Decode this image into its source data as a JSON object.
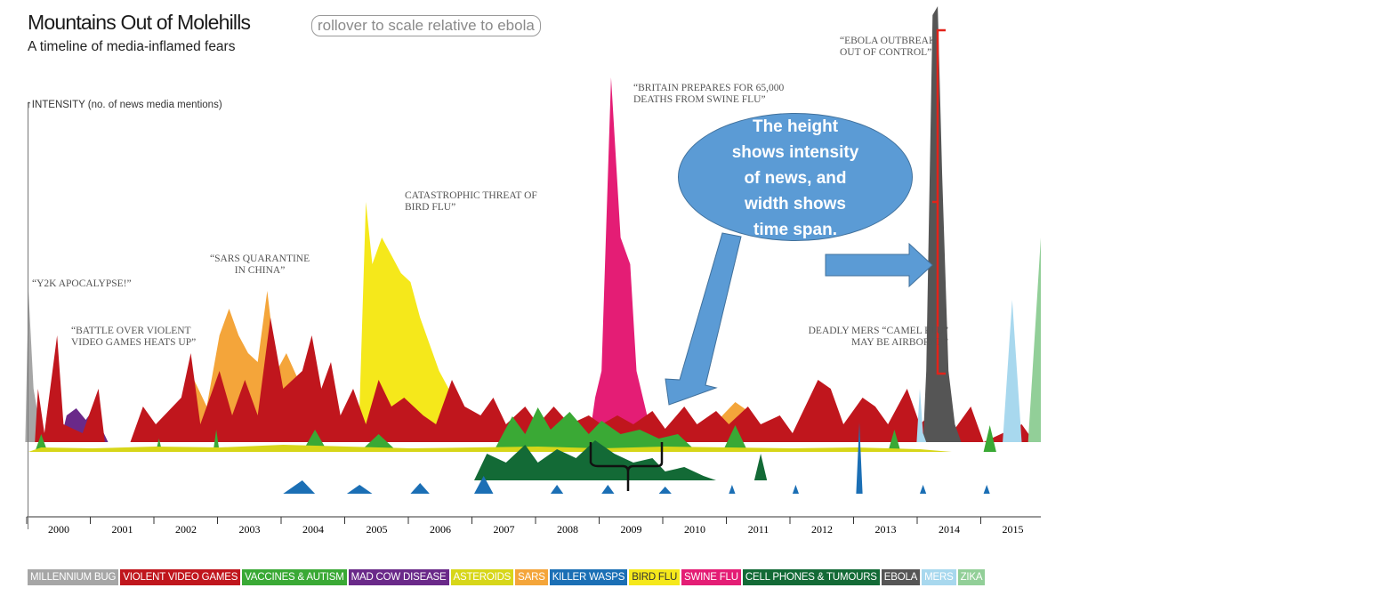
{
  "header": {
    "title": "Mountains Out of Molehills",
    "subtitle": "A timeline of media-inflamed fears",
    "rollover": "rollover to scale relative to ebola"
  },
  "callout": {
    "lines": [
      "The height",
      "shows intensity",
      "of news, and",
      "width shows",
      "time span."
    ]
  },
  "annotations": {
    "y2k": "“Y2K APOCALYPSE!”",
    "games": "“BATTLE OVER VIOLENT\nVIDEO GAMES HEATS UP”",
    "sars": "“SARS QUARANTINE\nIN CHINA”",
    "birdflu": "CATASTROPHIC THREAT OF\nBIRD FLU”",
    "swineflu": "“BRITAIN PREPARES FOR 65,000\nDEATHS FROM SWINE FLU”",
    "mers": "DEADLY MERS “CAMEL FLU”\nMAY BE AIRBORNE”",
    "ebola": "“EBOLA OUTBREAK\nOUT OF CONTROL”"
  },
  "colors": {
    "millennium_bug": "#a6a6a6",
    "violent_video_games": "#c0161d",
    "vaccines_autism": "#3aa935",
    "mad_cow": "#6a2989",
    "asteroids": "#d7d619",
    "sars": "#f4a53a",
    "killer_wasps": "#1b6fb5",
    "bird_flu": "#f5e81b",
    "swine_flu": "#e41d75",
    "cell_phones": "#136a36",
    "ebola": "#555555",
    "mers": "#a8d8ee",
    "zika": "#92cf98",
    "callout_fill": "#5b9bd5",
    "bracket_red": "#e2231a"
  },
  "chart_data": {
    "type": "area",
    "title": "Mountains Out of Molehills",
    "subtitle": "A timeline of media-inflamed fears",
    "ylabel": "INTENSITY (no. of news media mentions)",
    "xlabel": "",
    "x_ticks": [
      "2000",
      "2001",
      "2002",
      "2003",
      "2004",
      "2005",
      "2006",
      "2007",
      "2008",
      "2009",
      "2010",
      "2011",
      "2012",
      "2013",
      "2014",
      "2015"
    ],
    "xlim": [
      2000,
      2015.9
    ],
    "legend": [
      {
        "name": "MILLENNIUM BUG",
        "color": "#a6a6a6"
      },
      {
        "name": "VIOLENT VIDEO GAMES",
        "color": "#c0161d"
      },
      {
        "name": "VACCINES & AUTISM",
        "color": "#3aa935"
      },
      {
        "name": "MAD COW DISEASE",
        "color": "#6a2989"
      },
      {
        "name": "ASTEROIDS",
        "color": "#d7d619"
      },
      {
        "name": "SARS",
        "color": "#f4a53a"
      },
      {
        "name": "KILLER WASPS",
        "color": "#1b6fb5"
      },
      {
        "name": "BIRD FLU",
        "color": "#f5e81b"
      },
      {
        "name": "SWINE FLU",
        "color": "#e41d75"
      },
      {
        "name": "CELL PHONES & TUMOURS",
        "color": "#136a36"
      },
      {
        "name": "EBOLA",
        "color": "#555555"
      },
      {
        "name": "MERS",
        "color": "#a8d8ee"
      },
      {
        "name": "ZIKA",
        "color": "#92cf98"
      }
    ],
    "legend_position": "bottom",
    "grid": false,
    "series": [
      {
        "name": "MILLENNIUM BUG",
        "row": 0,
        "points": [
          [
            1999.95,
            0
          ],
          [
            2000.0,
            170
          ],
          [
            2000.08,
            60
          ],
          [
            2000.15,
            30
          ],
          [
            2000.25,
            10
          ],
          [
            2000.32,
            0
          ]
        ]
      },
      {
        "name": "MAD COW DISEASE",
        "row": 0,
        "points": [
          [
            2000.5,
            0
          ],
          [
            2000.6,
            30
          ],
          [
            2000.75,
            38
          ],
          [
            2000.9,
            25
          ],
          [
            2001.0,
            35
          ],
          [
            2001.15,
            15
          ],
          [
            2001.25,
            0
          ],
          [
            2003.85,
            0
          ],
          [
            2003.95,
            70
          ],
          [
            2004.1,
            20
          ],
          [
            2004.2,
            0
          ]
        ]
      },
      {
        "name": "SARS",
        "row": 0,
        "points": [
          [
            2002.4,
            0
          ],
          [
            2002.6,
            70
          ],
          [
            2002.8,
            40
          ],
          [
            2003.0,
            120
          ],
          [
            2003.15,
            150
          ],
          [
            2003.3,
            120
          ],
          [
            2003.45,
            100
          ],
          [
            2003.6,
            90
          ],
          [
            2003.75,
            170
          ],
          [
            2003.9,
            80
          ],
          [
            2004.05,
            100
          ],
          [
            2004.3,
            60
          ],
          [
            2004.6,
            50
          ],
          [
            2004.9,
            20
          ],
          [
            2005.1,
            0
          ],
          [
            2010.6,
            0
          ],
          [
            2010.9,
            30
          ],
          [
            2011.1,
            45
          ],
          [
            2011.3,
            35
          ],
          [
            2011.5,
            20
          ],
          [
            2011.7,
            0
          ]
        ]
      },
      {
        "name": "BIRD FLU",
        "row": 0,
        "points": [
          [
            2005.0,
            0
          ],
          [
            2005.2,
            40
          ],
          [
            2005.3,
            270
          ],
          [
            2005.4,
            200
          ],
          [
            2005.55,
            230
          ],
          [
            2005.7,
            210
          ],
          [
            2005.85,
            190
          ],
          [
            2006.0,
            180
          ],
          [
            2006.15,
            140
          ],
          [
            2006.3,
            110
          ],
          [
            2006.45,
            80
          ],
          [
            2006.6,
            60
          ],
          [
            2006.8,
            40
          ],
          [
            2007.0,
            20
          ],
          [
            2007.2,
            0
          ]
        ]
      },
      {
        "name": "SWINE FLU",
        "row": 0,
        "points": [
          [
            2008.8,
            0
          ],
          [
            2008.9,
            50
          ],
          [
            2009.0,
            80
          ],
          [
            2009.15,
            410
          ],
          [
            2009.3,
            230
          ],
          [
            2009.45,
            200
          ],
          [
            2009.55,
            80
          ],
          [
            2009.75,
            20
          ],
          [
            2009.9,
            0
          ]
        ]
      },
      {
        "name": "VIOLENT VIDEO GAMES",
        "row": 0,
        "points": [
          [
            2000.1,
            0
          ],
          [
            2000.15,
            60
          ],
          [
            2000.25,
            10
          ],
          [
            2000.45,
            120
          ],
          [
            2000.55,
            20
          ],
          [
            2000.85,
            10
          ],
          [
            2001.1,
            60
          ],
          [
            2001.2,
            0
          ],
          [
            2001.6,
            0
          ],
          [
            2001.8,
            40
          ],
          [
            2002.0,
            20
          ],
          [
            2002.4,
            50
          ],
          [
            2002.55,
            100
          ],
          [
            2002.7,
            20
          ],
          [
            2003.0,
            80
          ],
          [
            2003.2,
            30
          ],
          [
            2003.4,
            70
          ],
          [
            2003.6,
            30
          ],
          [
            2003.8,
            140
          ],
          [
            2004.0,
            60
          ],
          [
            2004.3,
            80
          ],
          [
            2004.45,
            120
          ],
          [
            2004.6,
            60
          ],
          [
            2004.75,
            90
          ],
          [
            2004.9,
            30
          ],
          [
            2005.1,
            60
          ],
          [
            2005.3,
            20
          ],
          [
            2005.5,
            70
          ],
          [
            2005.7,
            40
          ],
          [
            2005.9,
            50
          ],
          [
            2006.2,
            30
          ],
          [
            2006.4,
            20
          ],
          [
            2006.65,
            70
          ],
          [
            2006.85,
            40
          ],
          [
            2007.1,
            30
          ],
          [
            2007.3,
            50
          ],
          [
            2007.5,
            20
          ],
          [
            2007.8,
            40
          ],
          [
            2008.0,
            20
          ],
          [
            2008.25,
            40
          ],
          [
            2008.5,
            20
          ],
          [
            2008.8,
            30
          ],
          [
            2009.0,
            20
          ],
          [
            2009.25,
            30
          ],
          [
            2009.5,
            20
          ],
          [
            2009.8,
            35
          ],
          [
            2010.0,
            15
          ],
          [
            2010.3,
            40
          ],
          [
            2010.5,
            20
          ],
          [
            2010.8,
            35
          ],
          [
            2011.0,
            20
          ],
          [
            2011.3,
            40
          ],
          [
            2011.5,
            20
          ],
          [
            2011.8,
            30
          ],
          [
            2012.0,
            10
          ],
          [
            2012.4,
            70
          ],
          [
            2012.6,
            60
          ],
          [
            2012.8,
            20
          ],
          [
            2013.1,
            50
          ],
          [
            2013.3,
            40
          ],
          [
            2013.5,
            20
          ],
          [
            2013.8,
            60
          ],
          [
            2014.0,
            20
          ],
          [
            2014.3,
            40
          ],
          [
            2014.5,
            10
          ],
          [
            2014.8,
            40
          ],
          [
            2015.0,
            0
          ],
          [
            2015.6,
            20
          ],
          [
            2015.8,
            0
          ]
        ]
      },
      {
        "name": "EBOLA",
        "row": 0,
        "points": [
          [
            2014.05,
            0
          ],
          [
            2014.1,
            80
          ],
          [
            2014.2,
            480
          ],
          [
            2014.28,
            490
          ],
          [
            2014.35,
            300
          ],
          [
            2014.45,
            80
          ],
          [
            2014.55,
            20
          ],
          [
            2014.65,
            0
          ]
        ]
      },
      {
        "name": "MERS",
        "row": 0,
        "points": [
          [
            2013.95,
            0
          ],
          [
            2014.0,
            60
          ],
          [
            2014.05,
            10
          ],
          [
            2014.1,
            0
          ],
          [
            2015.3,
            0
          ],
          [
            2015.45,
            160
          ],
          [
            2015.6,
            0
          ]
        ]
      },
      {
        "name": "ZIKA",
        "row": 0,
        "points": [
          [
            2015.7,
            0
          ],
          [
            2015.9,
            230
          ],
          [
            2015.9,
            0
          ]
        ]
      },
      {
        "name": "VACCINES & AUTISM",
        "row": 1,
        "points": [
          [
            2000.1,
            0
          ],
          [
            2000.2,
            20
          ],
          [
            2000.3,
            0
          ],
          [
            2002.0,
            0
          ],
          [
            2002.05,
            15
          ],
          [
            2002.1,
            0
          ],
          [
            2002.9,
            0
          ],
          [
            2002.95,
            25
          ],
          [
            2003.0,
            0
          ],
          [
            2004.3,
            0
          ],
          [
            2004.5,
            25
          ],
          [
            2004.7,
            0
          ],
          [
            2005.2,
            0
          ],
          [
            2005.5,
            20
          ],
          [
            2005.8,
            0
          ],
          [
            2007.3,
            0
          ],
          [
            2007.6,
            40
          ],
          [
            2007.8,
            20
          ],
          [
            2008.0,
            50
          ],
          [
            2008.2,
            25
          ],
          [
            2008.5,
            45
          ],
          [
            2008.8,
            20
          ],
          [
            2009.0,
            35
          ],
          [
            2009.3,
            20
          ],
          [
            2009.6,
            25
          ],
          [
            2009.9,
            15
          ],
          [
            2010.2,
            20
          ],
          [
            2010.5,
            0
          ],
          [
            2010.9,
            0
          ],
          [
            2011.1,
            30
          ],
          [
            2011.3,
            0
          ],
          [
            2013.5,
            0
          ],
          [
            2013.6,
            25
          ],
          [
            2013.7,
            0
          ],
          [
            2015.0,
            0
          ],
          [
            2015.1,
            30
          ],
          [
            2015.2,
            0
          ]
        ]
      },
      {
        "name": "ASTEROIDS",
        "row": 1,
        "points": [
          [
            2000.0,
            0
          ],
          [
            2000.2,
            5
          ],
          [
            2001.0,
            4
          ],
          [
            2002.0,
            6
          ],
          [
            2003.0,
            5
          ],
          [
            2004.0,
            8
          ],
          [
            2005.0,
            6
          ],
          [
            2006.0,
            4
          ],
          [
            2007.0,
            5
          ],
          [
            2008.0,
            6
          ],
          [
            2009.0,
            4
          ],
          [
            2010.0,
            6
          ],
          [
            2011.0,
            5
          ],
          [
            2012.0,
            4
          ],
          [
            2013.0,
            5
          ],
          [
            2014.0,
            3
          ],
          [
            2014.5,
            0
          ]
        ]
      },
      {
        "name": "CELL PHONES & TUMOURS",
        "row": 2,
        "points": [
          [
            2007.0,
            0
          ],
          [
            2007.2,
            30
          ],
          [
            2007.5,
            20
          ],
          [
            2007.8,
            40
          ],
          [
            2008.0,
            20
          ],
          [
            2008.3,
            35
          ],
          [
            2008.6,
            25
          ],
          [
            2008.9,
            45
          ],
          [
            2009.2,
            30
          ],
          [
            2009.5,
            20
          ],
          [
            2009.8,
            25
          ],
          [
            2010.0,
            10
          ],
          [
            2010.3,
            15
          ],
          [
            2010.6,
            5
          ],
          [
            2010.8,
            0
          ],
          [
            2011.4,
            0
          ],
          [
            2011.5,
            30
          ],
          [
            2011.6,
            0
          ]
        ]
      },
      {
        "name": "KILLER WASPS",
        "row": 3,
        "points": [
          [
            2004.0,
            0
          ],
          [
            2004.3,
            15
          ],
          [
            2004.5,
            0
          ],
          [
            2005.0,
            0
          ],
          [
            2005.2,
            10
          ],
          [
            2005.4,
            0
          ],
          [
            2006.0,
            0
          ],
          [
            2006.15,
            12
          ],
          [
            2006.3,
            0
          ],
          [
            2007.0,
            0
          ],
          [
            2007.15,
            20
          ],
          [
            2007.3,
            0
          ],
          [
            2008.2,
            0
          ],
          [
            2008.3,
            10
          ],
          [
            2008.4,
            0
          ],
          [
            2009.0,
            0
          ],
          [
            2009.1,
            10
          ],
          [
            2009.2,
            0
          ],
          [
            2009.9,
            0
          ],
          [
            2010.0,
            8
          ],
          [
            2010.1,
            0
          ],
          [
            2011.0,
            0
          ],
          [
            2011.05,
            10
          ],
          [
            2011.1,
            0
          ],
          [
            2012.0,
            0
          ],
          [
            2012.05,
            10
          ],
          [
            2012.1,
            0
          ],
          [
            2013.0,
            0
          ],
          [
            2013.05,
            80
          ],
          [
            2013.1,
            0
          ],
          [
            2014.0,
            0
          ],
          [
            2014.05,
            10
          ],
          [
            2014.1,
            0
          ],
          [
            2015.0,
            0
          ],
          [
            2015.05,
            10
          ],
          [
            2015.1,
            0
          ]
        ]
      }
    ]
  }
}
